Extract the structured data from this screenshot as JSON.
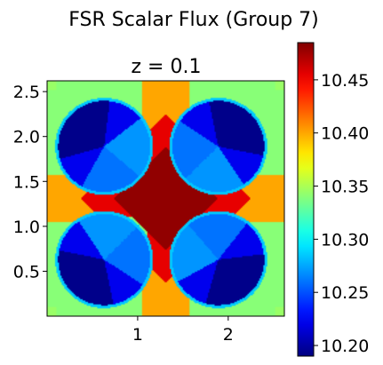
{
  "figure_title": "FSR Scalar Flux (Group 7)",
  "chart_data": {
    "type": "heatmap",
    "title": "z = 0.1",
    "suptitle": "FSR Scalar Flux (Group 7)",
    "colormap": "jet",
    "xlabel": "",
    "ylabel": "",
    "xlim": [
      0,
      2.62
    ],
    "ylim": [
      0,
      2.62
    ],
    "x_ticks": [
      1,
      2
    ],
    "x_tick_labels": [
      "1",
      "2"
    ],
    "y_ticks": [
      0.5,
      1.0,
      1.5,
      2.0,
      2.5
    ],
    "y_tick_labels": [
      "0.5",
      "1.0",
      "1.5",
      "2.0",
      "2.5"
    ],
    "colorbar": {
      "min": 10.19,
      "max": 10.485,
      "ticks": [
        10.2,
        10.25,
        10.3,
        10.35,
        10.4,
        10.45
      ],
      "tick_labels": [
        "10.20",
        "10.25",
        "10.30",
        "10.35",
        "10.40",
        "10.45"
      ]
    },
    "regions": {
      "fuel_pin_radius": 0.54,
      "pin_centers": [
        [
          0.63,
          0.63
        ],
        [
          1.89,
          0.63
        ],
        [
          0.63,
          1.89
        ],
        [
          1.89,
          1.89
        ]
      ],
      "fuel_sector_outer_dark": 10.193,
      "fuel_sector_mid": 10.222,
      "fuel_sector_inner_a": 10.26,
      "fuel_sector_inner_b": 10.27,
      "fuel_ring_edge": 10.285,
      "moderator_outer_corner": 10.345,
      "moderator_outer_edge": 10.34,
      "moderator_side_gap": 10.4,
      "moderator_central_diamond": 10.455,
      "moderator_center_core": 10.48
    }
  }
}
